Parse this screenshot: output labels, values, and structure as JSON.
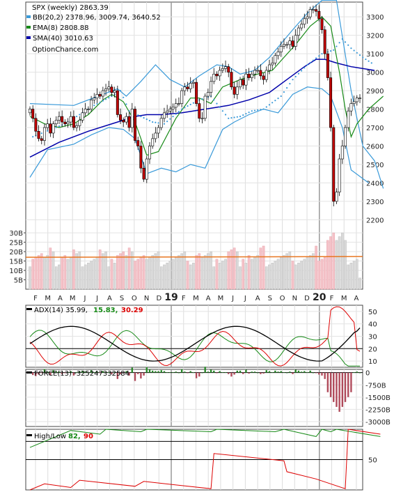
{
  "chart_data": [
    {
      "type": "candlestick",
      "panel": "price",
      "title": "SPX (weekly) 2863.39",
      "legend": [
        {
          "name": "BB(20,2) 2378.96, 3009.74, 3640.52",
          "color": "#3a9ad9"
        },
        {
          "name": "EMA(8) 2808.88",
          "color": "#168a16"
        },
        {
          "name": "SMA(40) 3010.63",
          "color": "#0000aa"
        }
      ],
      "watermark": "OptionChance.com",
      "yaxis_ticks": [
        2200,
        2300,
        2400,
        2500,
        2600,
        2700,
        2800,
        2900,
        3000,
        3100,
        3200,
        3300
      ],
      "ylim": [
        2160,
        3380
      ],
      "x_month_labels": [
        "F",
        "M",
        "A",
        "M",
        "J",
        "J",
        "A",
        "S",
        "O",
        "N",
        "D",
        "19",
        "F",
        "M",
        "A",
        "M",
        "J",
        "J",
        "A",
        "S",
        "O",
        "N",
        "D",
        "20",
        "F",
        "M",
        "A"
      ],
      "closes": [
        2800,
        2750,
        2680,
        2640,
        2630,
        2700,
        2720,
        2670,
        2720,
        2740,
        2760,
        2730,
        2720,
        2730,
        2760,
        2700,
        2710,
        2740,
        2780,
        2800,
        2800,
        2850,
        2860,
        2880,
        2870,
        2900,
        2910,
        2920,
        2890,
        2900,
        2770,
        2740,
        2730,
        2760,
        2700,
        2800,
        2630,
        2600,
        2480,
        2420,
        2530,
        2600,
        2640,
        2670,
        2700,
        2750,
        2780,
        2790,
        2800,
        2810,
        2830,
        2830,
        2900,
        2920,
        2910,
        2940,
        2945,
        2830,
        2750,
        2750,
        2870,
        2890,
        2950,
        2990,
        2980,
        3010,
        3020,
        3030,
        3000,
        2920,
        2880,
        2920,
        2960,
        2930,
        2990,
        2970,
        2990,
        3010,
        3010,
        2980,
        2960,
        3010,
        3040,
        3050,
        3090,
        3110,
        3140,
        3150,
        3150,
        3170,
        3140,
        3200,
        3240,
        3260,
        3290,
        3300,
        3340,
        3340,
        3330,
        3290,
        3230,
        3100,
        2970,
        2700,
        2300,
        2350,
        2530,
        2600,
        2700,
        2790,
        2830,
        2840,
        2860,
        2860
      ],
      "bollinger_upper_points": [
        [
          0,
          2830
        ],
        [
          15,
          2820
        ],
        [
          25,
          2880
        ],
        [
          30,
          2910
        ],
        [
          33,
          2870
        ],
        [
          38,
          2950
        ],
        [
          43,
          3040
        ],
        [
          48,
          2960
        ],
        [
          53,
          2920
        ],
        [
          58,
          2980
        ],
        [
          64,
          3040
        ],
        [
          68,
          3030
        ],
        [
          72,
          2990
        ],
        [
          77,
          3010
        ],
        [
          82,
          3080
        ],
        [
          90,
          3230
        ],
        [
          95,
          3320
        ],
        [
          100,
          3390
        ],
        [
          105,
          3390
        ],
        [
          110,
          2900
        ],
        [
          114,
          2600
        ],
        [
          118,
          2520
        ],
        [
          121,
          2370
        ]
      ],
      "bollinger_lower_points": [
        [
          0,
          2430
        ],
        [
          6,
          2580
        ],
        [
          15,
          2610
        ],
        [
          21,
          2660
        ],
        [
          27,
          2700
        ],
        [
          32,
          2690
        ],
        [
          36,
          2640
        ],
        [
          40,
          2450
        ],
        [
          45,
          2480
        ],
        [
          50,
          2460
        ],
        [
          55,
          2500
        ],
        [
          60,
          2480
        ],
        [
          66,
          2690
        ],
        [
          70,
          2730
        ],
        [
          75,
          2770
        ],
        [
          80,
          2800
        ],
        [
          85,
          2780
        ],
        [
          90,
          2880
        ],
        [
          95,
          2920
        ],
        [
          100,
          2910
        ],
        [
          103,
          2870
        ],
        [
          107,
          2700
        ],
        [
          110,
          2470
        ],
        [
          116,
          2400
        ]
      ],
      "ema8_points": [
        [
          0,
          2760
        ],
        [
          5,
          2720
        ],
        [
          10,
          2700
        ],
        [
          15,
          2720
        ],
        [
          20,
          2770
        ],
        [
          25,
          2850
        ],
        [
          28,
          2880
        ],
        [
          32,
          2840
        ],
        [
          36,
          2730
        ],
        [
          40,
          2550
        ],
        [
          44,
          2570
        ],
        [
          50,
          2750
        ],
        [
          55,
          2860
        ],
        [
          58,
          2860
        ],
        [
          62,
          2830
        ],
        [
          66,
          2920
        ],
        [
          72,
          2960
        ],
        [
          78,
          2990
        ],
        [
          83,
          3010
        ],
        [
          87,
          3080
        ],
        [
          91,
          3150
        ],
        [
          96,
          3250
        ],
        [
          100,
          3300
        ],
        [
          103,
          3250
        ],
        [
          106,
          3000
        ],
        [
          108,
          2800
        ],
        [
          110,
          2650
        ],
        [
          112,
          2720
        ],
        [
          116,
          2800
        ],
        [
          121,
          2870
        ]
      ],
      "sma40_points": [
        [
          0,
          2540
        ],
        [
          10,
          2620
        ],
        [
          20,
          2680
        ],
        [
          30,
          2730
        ],
        [
          36,
          2760
        ],
        [
          40,
          2770
        ],
        [
          45,
          2770
        ],
        [
          52,
          2780
        ],
        [
          60,
          2800
        ],
        [
          68,
          2820
        ],
        [
          75,
          2850
        ],
        [
          82,
          2890
        ],
        [
          88,
          2960
        ],
        [
          94,
          3030
        ],
        [
          98,
          3070
        ],
        [
          101,
          3070
        ],
        [
          105,
          3050
        ],
        [
          110,
          3030
        ],
        [
          118,
          3010
        ]
      ],
      "sar_points": [
        [
          1,
          2650
        ],
        [
          12,
          2720
        ],
        [
          22,
          2820
        ],
        [
          28,
          2870
        ],
        [
          31,
          2900
        ],
        [
          34,
          2790
        ],
        [
          38,
          2760
        ],
        [
          42,
          2730
        ],
        [
          46,
          2720
        ],
        [
          52,
          2800
        ],
        [
          58,
          2850
        ],
        [
          62,
          2870
        ],
        [
          68,
          2750
        ],
        [
          72,
          2760
        ],
        [
          76,
          2790
        ],
        [
          80,
          2800
        ],
        [
          86,
          2870
        ],
        [
          90,
          2960
        ],
        [
          95,
          3040
        ],
        [
          100,
          3100
        ],
        [
          104,
          3120
        ],
        [
          107,
          3180
        ],
        [
          110,
          3130
        ],
        [
          114,
          3080
        ],
        [
          118,
          3040
        ]
      ],
      "volume_ticks": [
        "5B",
        "10B",
        "15B",
        "20B",
        "25B",
        "30B"
      ],
      "volume_ylim": [
        0,
        33
      ],
      "volume_ma_level": 17
    },
    {
      "type": "line",
      "panel": "adx",
      "label": "ADX(14) 35.99,",
      "plus_di_label": "15.83,",
      "minus_di_label": "30.29",
      "yaxis_ticks": [
        10,
        20,
        30,
        40,
        50
      ],
      "ylim": [
        5,
        55
      ],
      "reference_level": 20
    },
    {
      "type": "bar",
      "panel": "force",
      "label": "FORCE(13) -325247332584",
      "yaxis_ticks": [
        "0",
        "-750B",
        "-1500B",
        "-2250B",
        "-3000B"
      ],
      "tick_values": [
        0,
        -750,
        -1500,
        -2250,
        -3000
      ]
    },
    {
      "type": "line",
      "panel": "highlow",
      "label": "High/Low",
      "high_label": "82,",
      "low_label": "90",
      "yaxis_ticks": [
        50
      ],
      "ylim": [
        0,
        100
      ]
    }
  ],
  "colors": {
    "up": "#ffffff",
    "down": "#c00000",
    "bb": "#3a9ad9",
    "ema": "#168a16",
    "sma": "#0000aa",
    "adx": "#000000",
    "plus_di": "#168a16",
    "minus_di": "#dd0000",
    "vol_up": "#d9d9d9",
    "vol_down": "#f4c2c8",
    "vol_ma": "#e87722"
  }
}
